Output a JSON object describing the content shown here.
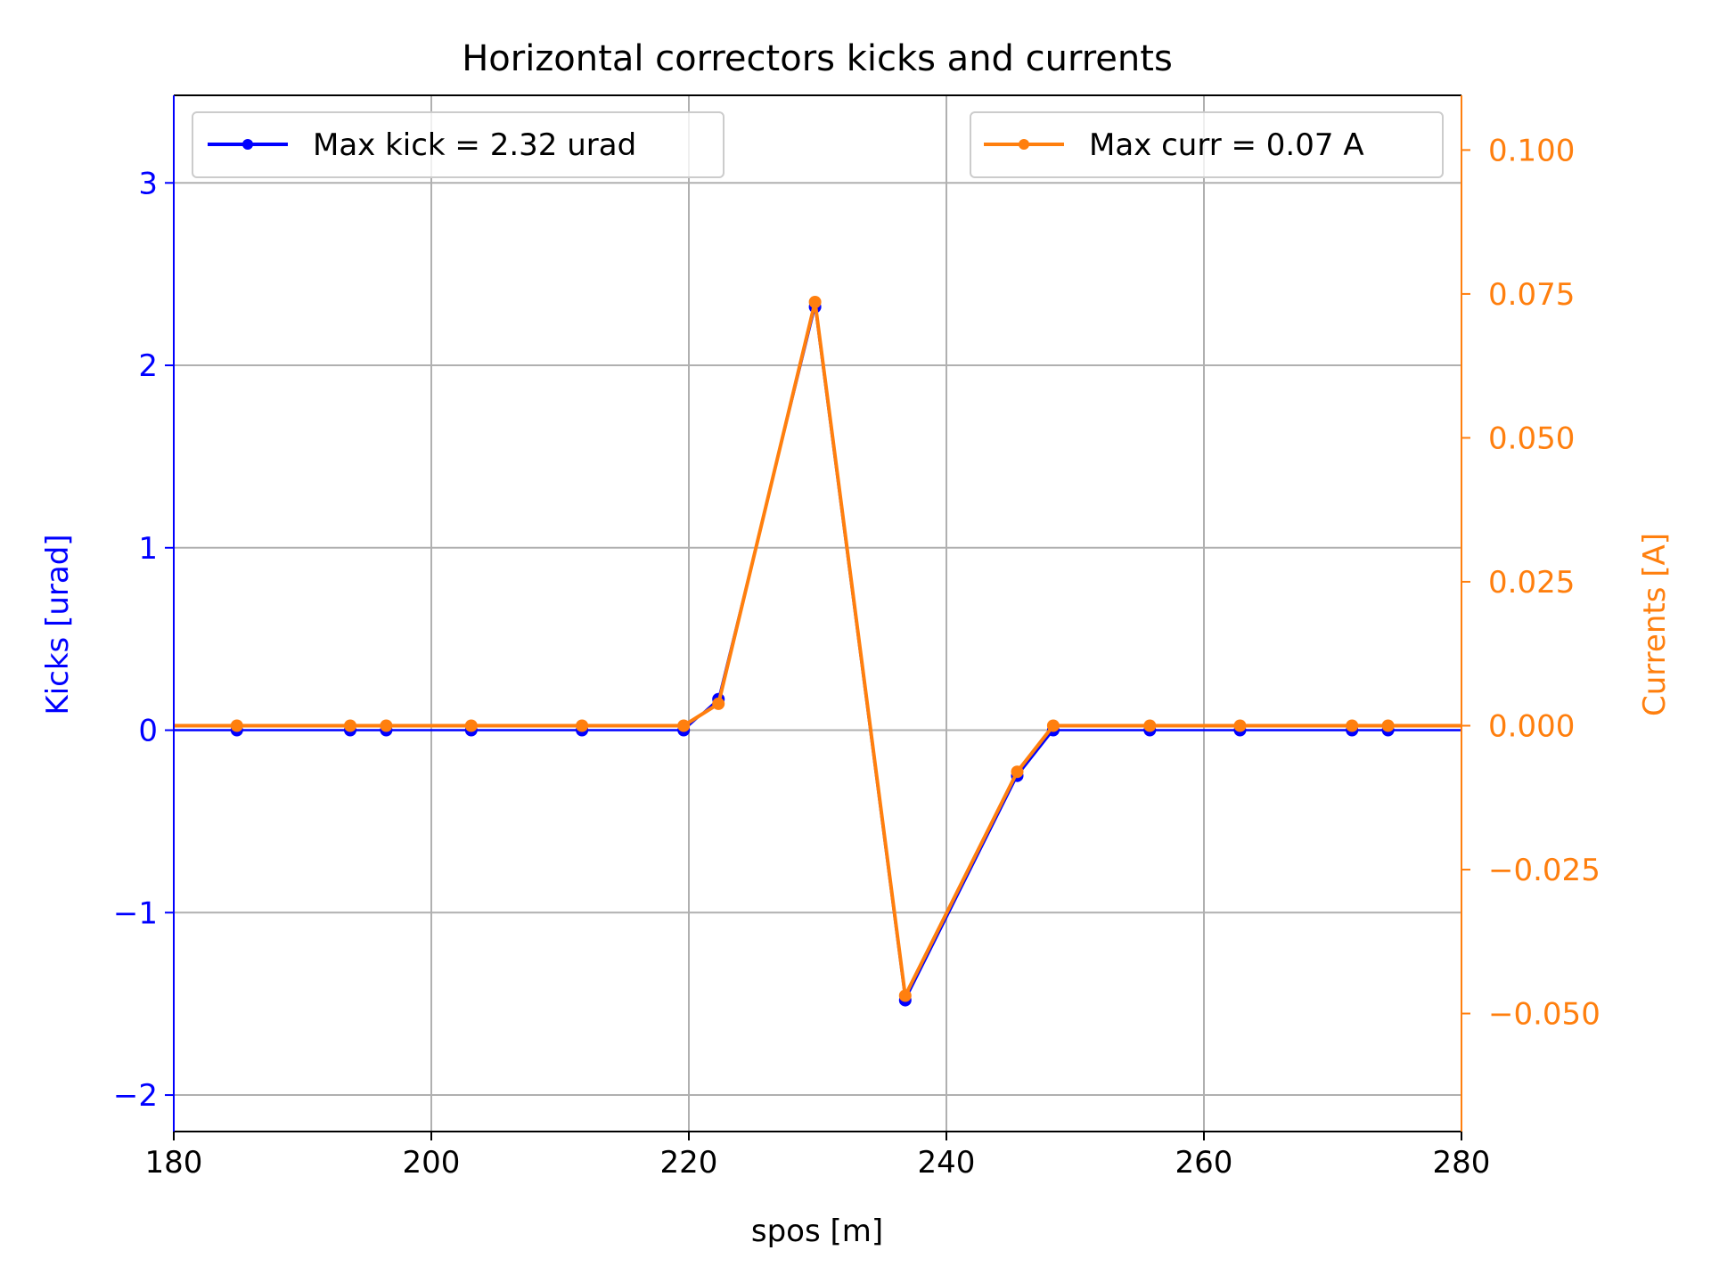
{
  "chart_data": {
    "type": "line",
    "title": "Horizontal correctors kicks and currents",
    "xlabel": "spos [m]",
    "ylabel_left": "Kicks [urad]",
    "ylabel_right": "Currents [A]",
    "xlim": [
      180,
      280
    ],
    "ylim_left": [
      -2.2,
      3.48
    ],
    "ylim_right": [
      -0.0705,
      0.1095
    ],
    "x_ticks": [
      180,
      200,
      220,
      240,
      260,
      280
    ],
    "x_tick_labels": [
      "180",
      "200",
      "220",
      "240",
      "260",
      "280"
    ],
    "y_ticks_left": [
      -2,
      -1,
      0,
      1,
      2,
      3
    ],
    "y_tick_labels_left": [
      "−2",
      "−1",
      "0",
      "1",
      "2",
      "3"
    ],
    "y_ticks_right": [
      -0.05,
      -0.025,
      0.0,
      0.025,
      0.05,
      0.075,
      0.1
    ],
    "y_tick_labels_right": [
      "−0.050",
      "−0.025",
      "0.000",
      "0.025",
      "0.050",
      "0.075",
      "0.100"
    ],
    "grid": true,
    "series": [
      {
        "name": "Max kick = 2.32 urad",
        "axis": "left",
        "color": "#0000ff",
        "legend_position": "upper-left",
        "x": [
          180,
          184.9,
          193.7,
          196.5,
          203.1,
          211.7,
          219.6,
          222.3,
          229.8,
          236.8,
          245.5,
          248.3,
          255.8,
          262.8,
          271.5,
          274.3,
          280
        ],
        "y": [
          0,
          0,
          0,
          0,
          0,
          0,
          0,
          0.17,
          2.32,
          -1.48,
          -0.25,
          0,
          0,
          0,
          0,
          0,
          0
        ]
      },
      {
        "name": "Max curr = 0.07 A",
        "axis": "right",
        "color": "#ff7f0e",
        "legend_position": "upper-right",
        "x": [
          180,
          184.9,
          193.7,
          196.5,
          203.1,
          211.7,
          219.6,
          222.3,
          229.8,
          236.8,
          245.5,
          248.3,
          255.8,
          262.8,
          271.5,
          274.3,
          280
        ],
        "y": [
          0,
          0,
          0,
          0,
          0,
          0,
          0,
          0.0038,
          0.0736,
          -0.0469,
          -0.008,
          0,
          0,
          0,
          0,
          0,
          0
        ]
      }
    ]
  }
}
